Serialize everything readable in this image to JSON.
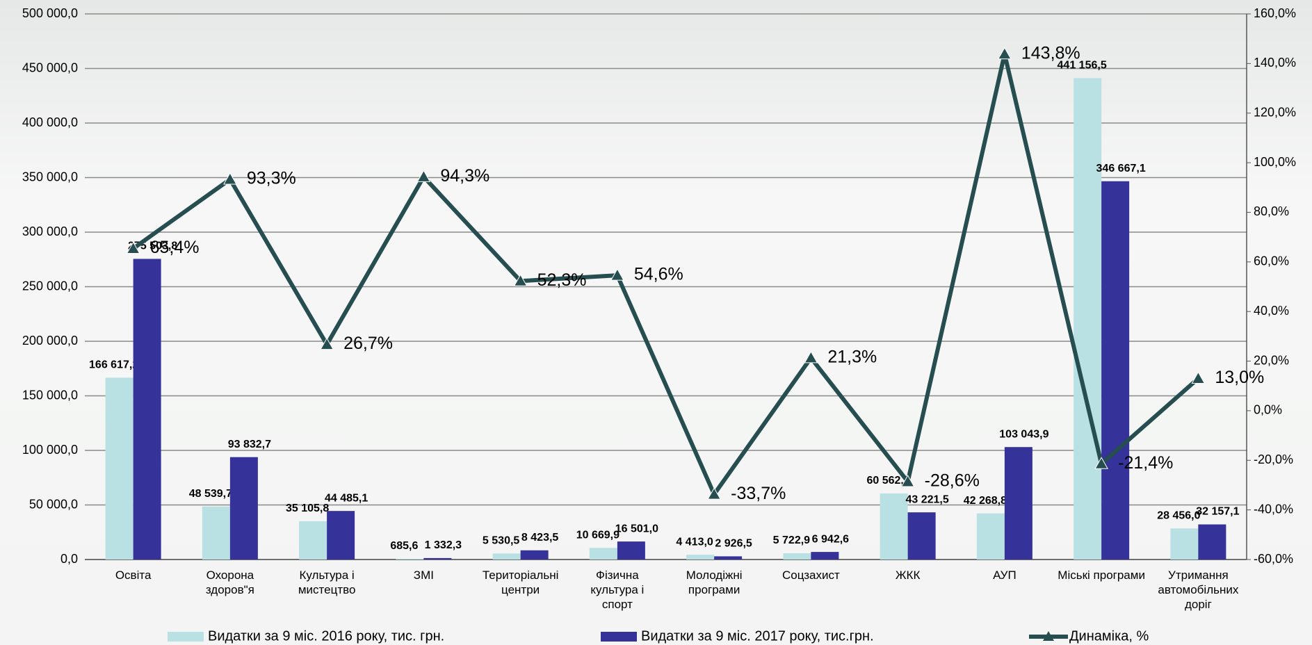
{
  "chart_data": {
    "type": "bar_line",
    "categories": [
      "Освіта",
      "Охорона\nздоров\"я",
      "Культура і\nмистецтво",
      "ЗМІ",
      "Територіальні\nцентри",
      "Фізична\nкультура і\nспорт",
      "Молодіжні\nпрограми",
      "Соцзахист",
      "ЖКК",
      "АУП",
      "Міські програми",
      "Утримання\nавтомобільних\nдоріг"
    ],
    "series": [
      {
        "name": "Видатки за 9 міс. 2016 року, тис. грн.",
        "type": "bar",
        "color": "#b9e0e3",
        "values": [
          166617.2,
          48539.7,
          35105.8,
          685.6,
          5530.5,
          10669.9,
          4413.0,
          5722.9,
          60562.2,
          42268.8,
          441156.5,
          28456.0
        ],
        "value_labels": [
          "166 617,2",
          "48 539,7",
          "35 105,8",
          "685,6",
          "5 530,5",
          "10 669,9",
          "4 413,0",
          "5 722,9",
          "60 562,2",
          "42 268,8",
          "441 156,5",
          "28 456,0"
        ]
      },
      {
        "name": "Видатки за 9 міс. 2017 року, тис.грн.",
        "type": "bar",
        "color": "#35329a",
        "values": [
          275503.8,
          93832.7,
          44485.1,
          1332.3,
          8423.5,
          16501.0,
          2926.5,
          6942.6,
          43221.5,
          103043.9,
          346667.1,
          32157.1
        ],
        "value_labels": [
          "275 503,8",
          "93 832,7",
          "44 485,1",
          "1 332,3",
          "8 423,5",
          "16 501,0",
          "2 926,5",
          "6 942,6",
          "43 221,5",
          "103 043,9",
          "346 667,1",
          "32 157,1"
        ]
      },
      {
        "name": "Динаміка, %",
        "type": "line",
        "axis": "y2",
        "color": "#264d4f",
        "values": [
          65.4,
          93.3,
          26.7,
          94.3,
          52.3,
          54.6,
          -33.7,
          21.3,
          -28.6,
          143.8,
          -21.4,
          13.0
        ],
        "value_labels": [
          "65,4%",
          "93,3%",
          "26,7%",
          "94,3%",
          "52,3%",
          "54,6%",
          "-33,7%",
          "21,3%",
          "-28,6%",
          "143,8%",
          "-21,4%",
          "13,0%"
        ]
      }
    ],
    "ylim": [
      0,
      500000
    ],
    "yticks": [
      {
        "value": 0,
        "label": "0,0"
      },
      {
        "value": 50000,
        "label": "50 000,0"
      },
      {
        "value": 100000,
        "label": "100 000,0"
      },
      {
        "value": 150000,
        "label": "150 000,0"
      },
      {
        "value": 200000,
        "label": "200 000,0"
      },
      {
        "value": 250000,
        "label": "250 000,0"
      },
      {
        "value": 300000,
        "label": "300 000,0"
      },
      {
        "value": 350000,
        "label": "350 000,0"
      },
      {
        "value": 400000,
        "label": "400 000,0"
      },
      {
        "value": 450000,
        "label": "450 000,0"
      },
      {
        "value": 500000,
        "label": "500 000,0"
      }
    ],
    "y2lim": [
      -60,
      160
    ],
    "y2ticks": [
      {
        "value": -60,
        "label": "-60,0%"
      },
      {
        "value": -40,
        "label": "-40,0%"
      },
      {
        "value": -20,
        "label": "-20,0%"
      },
      {
        "value": 0,
        "label": "0,0%"
      },
      {
        "value": 20,
        "label": "20,0%"
      },
      {
        "value": 40,
        "label": "40,0%"
      },
      {
        "value": 60,
        "label": "60,0%"
      },
      {
        "value": 80,
        "label": "80,0%"
      },
      {
        "value": 100,
        "label": "100,0%"
      },
      {
        "value": 120,
        "label": "120,0%"
      },
      {
        "value": 140,
        "label": "140,0%"
      },
      {
        "value": 160,
        "label": "160,0%"
      }
    ],
    "grid": true,
    "legend": "bottom"
  }
}
